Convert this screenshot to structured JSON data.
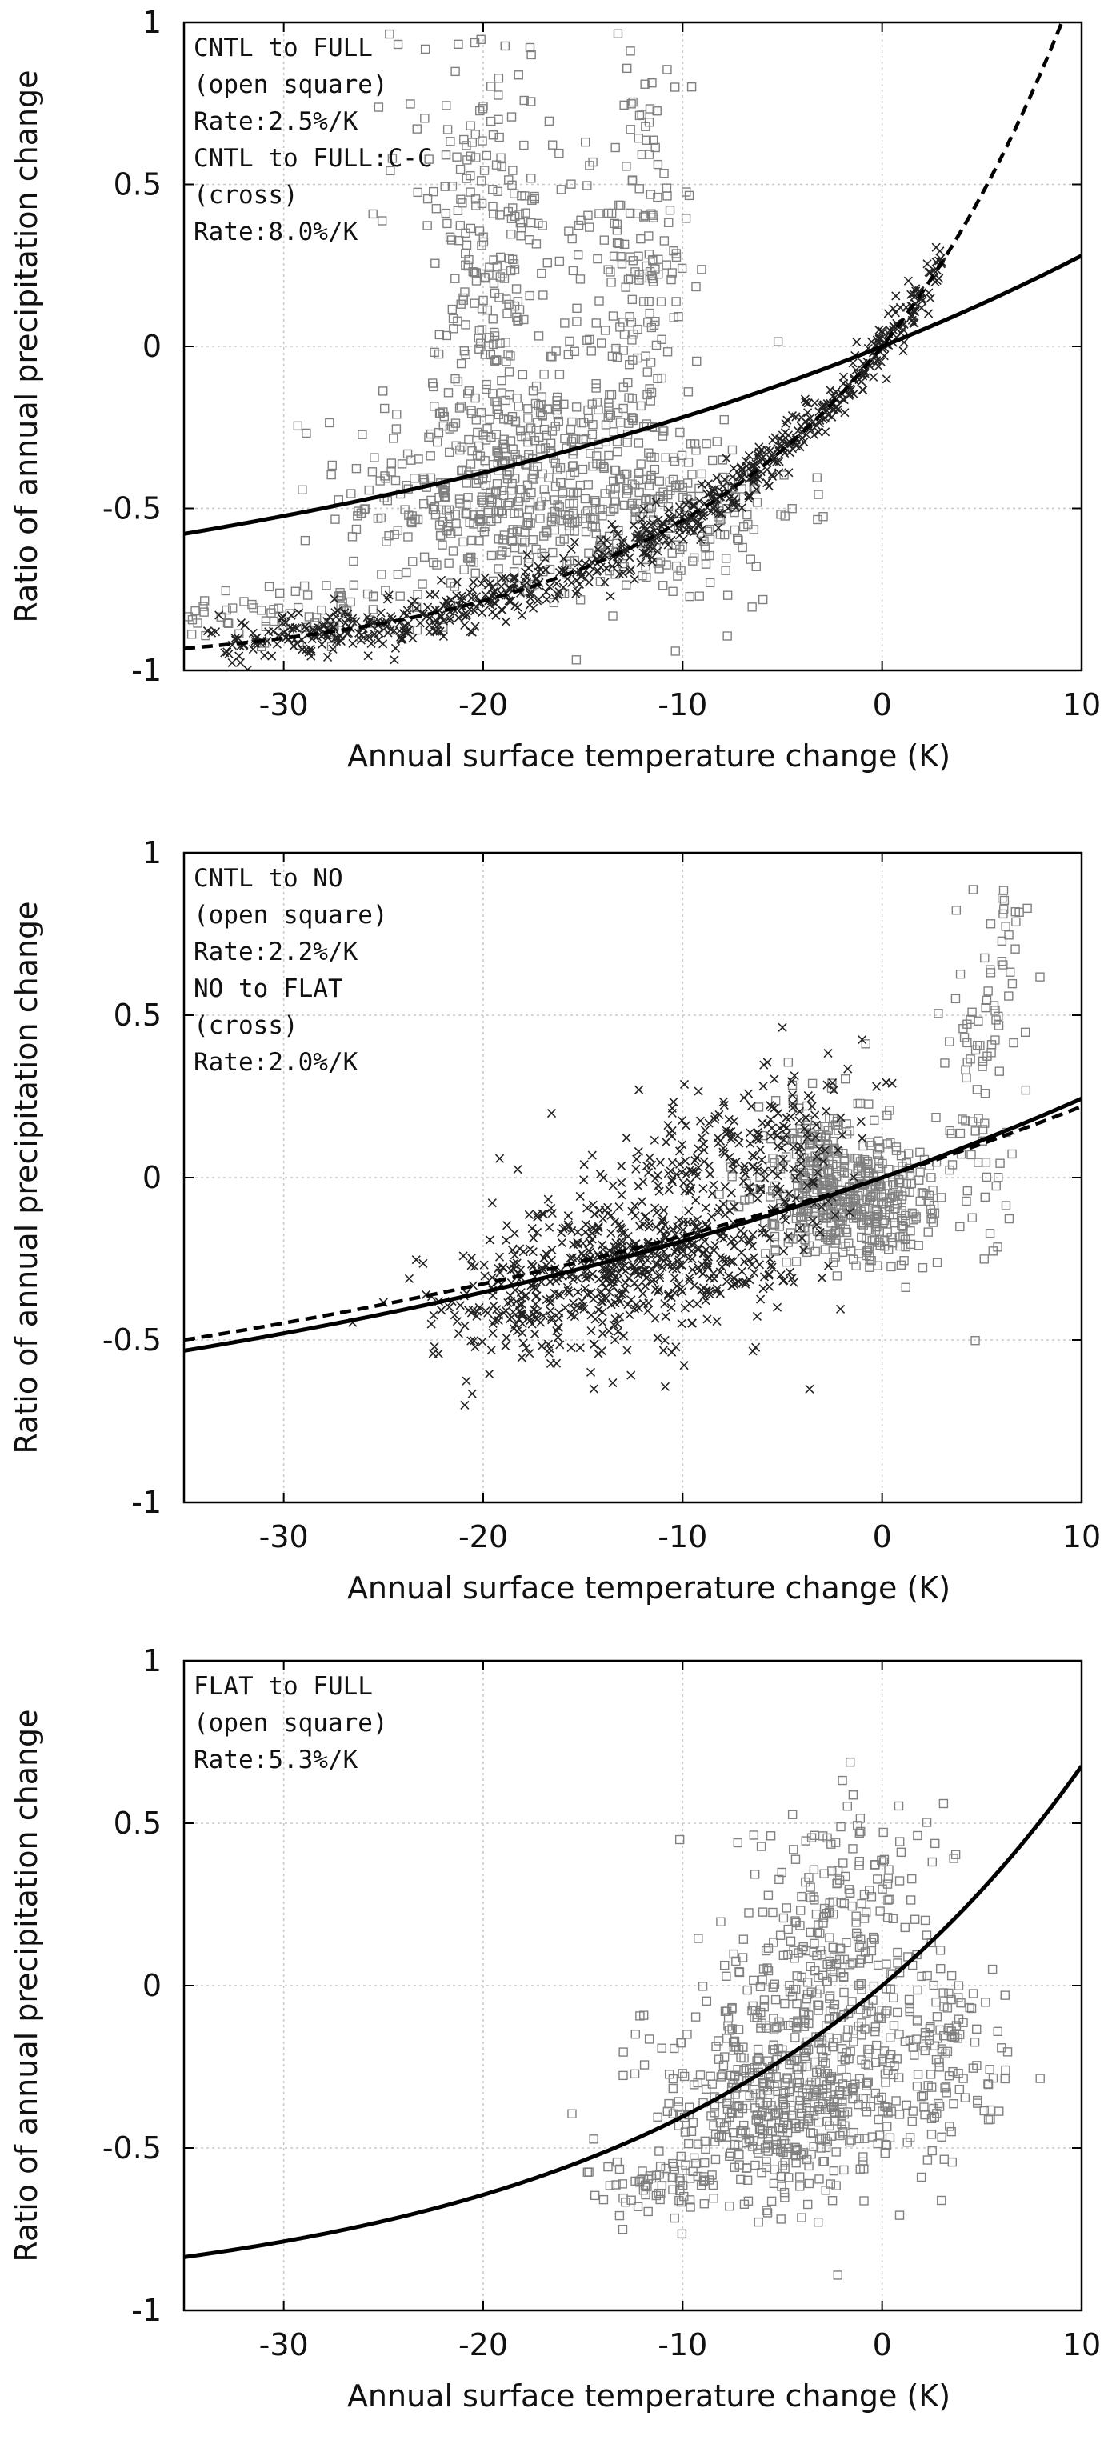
{
  "chart_data": [
    {
      "type": "scatter",
      "xlabel": "Annual surface temperature change (K)",
      "ylabel": "Ratio of annual precipitation change",
      "xlim": [
        -35,
        10
      ],
      "ylim": [
        -1,
        1
      ],
      "xticks": [
        -30,
        -20,
        -10,
        0,
        10
      ],
      "yticks": [
        -1,
        -0.5,
        0,
        0.5,
        1
      ],
      "grid": true,
      "legend_lines": [
        "CNTL to FULL",
        "(open square)",
        "Rate:2.5%/K",
        "CNTL to FULL:C-C",
        "(cross)",
        "Rate:8.0%/K"
      ],
      "series": [
        {
          "marker": "open-square",
          "color": "#808080",
          "rate": 0.025,
          "fit_style": "solid",
          "clusters": [
            {
              "cx": -19,
              "cy": -0.45,
              "sx": 4.0,
              "sy": 0.18,
              "n": 420
            },
            {
              "cx": -19.5,
              "cy": 0.1,
              "sx": 1.3,
              "sy": 0.3,
              "n": 170
            },
            {
              "cx": -20.5,
              "cy": 0.6,
              "sx": 2.0,
              "sy": 0.22,
              "n": 70
            },
            {
              "cx": -12,
              "cy": 0.2,
              "sx": 1.2,
              "sy": 0.38,
              "n": 150
            },
            {
              "cx": -11,
              "cy": -0.5,
              "sx": 3.5,
              "sy": 0.15,
              "n": 200
            },
            {
              "cx": -15,
              "cy": 0.0,
              "sx": 2.5,
              "sy": 0.3,
              "n": 90
            },
            {
              "cx": -29,
              "cy": -0.82,
              "sx": 3.5,
              "sy": 0.05,
              "n": 80
            }
          ]
        },
        {
          "marker": "cross",
          "color": "#222222",
          "rate": 0.08,
          "fit_style": "dashed",
          "on_curve": true,
          "curve_xrange": [
            -34,
            3
          ],
          "curve_spread": 0.04,
          "n": 750
        }
      ]
    },
    {
      "type": "scatter",
      "xlabel": "Annual surface temperature change (K)",
      "ylabel": "Ratio of annual precipitation change",
      "xlim": [
        -35,
        10
      ],
      "ylim": [
        -1,
        1
      ],
      "xticks": [
        -30,
        -20,
        -10,
        0,
        10
      ],
      "yticks": [
        -1,
        -0.5,
        0,
        0.5,
        1
      ],
      "grid": true,
      "legend_lines": [
        "CNTL to NO",
        "(open square)",
        "Rate:2.2%/K",
        "NO to FLAT",
        "(cross)",
        "Rate:2.0%/K"
      ],
      "series": [
        {
          "marker": "open-square",
          "color": "#808080",
          "rate": 0.022,
          "fit_style": "solid",
          "clusters": [
            {
              "cx": -1.5,
              "cy": -0.07,
              "sx": 2.3,
              "sy": 0.1,
              "n": 420
            },
            {
              "cx": -3,
              "cy": 0.1,
              "sx": 1.2,
              "sy": 0.12,
              "n": 90
            },
            {
              "cx": 5,
              "cy": 0.3,
              "sx": 1.0,
              "sy": 0.25,
              "n": 80
            },
            {
              "cx": 6.3,
              "cy": 0.75,
              "sx": 0.35,
              "sy": 0.15,
              "n": 20
            }
          ]
        },
        {
          "marker": "cross",
          "color": "#222222",
          "rate": 0.02,
          "fit_style": "dashed",
          "clusters": [
            {
              "cx": -12,
              "cy": -0.25,
              "sx": 3.5,
              "sy": 0.13,
              "n": 500
            },
            {
              "cx": -18,
              "cy": -0.4,
              "sx": 2.5,
              "sy": 0.1,
              "n": 180
            },
            {
              "cx": -8,
              "cy": 0.05,
              "sx": 2.5,
              "sy": 0.14,
              "n": 150
            },
            {
              "cx": -4,
              "cy": 0.15,
              "sx": 1.5,
              "sy": 0.12,
              "n": 70
            }
          ]
        }
      ]
    },
    {
      "type": "scatter",
      "xlabel": "Annual surface temperature change (K)",
      "ylabel": "Ratio of annual precipitation change",
      "xlim": [
        -35,
        10
      ],
      "ylim": [
        -1,
        1
      ],
      "xticks": [
        -30,
        -20,
        -10,
        0,
        10
      ],
      "yticks": [
        -1,
        -0.5,
        0,
        0.5,
        1
      ],
      "grid": true,
      "legend_lines": [
        "FLAT to FULL",
        "(open square)",
        "Rate:5.3%/K"
      ],
      "series": [
        {
          "marker": "open-square",
          "color": "#808080",
          "rate": 0.053,
          "fit_style": "solid",
          "clusters": [
            {
              "cx": -5,
              "cy": -0.35,
              "sx": 3.0,
              "sy": 0.15,
              "n": 520
            },
            {
              "cx": -3,
              "cy": 0.1,
              "sx": 2.5,
              "sy": 0.18,
              "n": 220
            },
            {
              "cx": 2.5,
              "cy": -0.2,
              "sx": 2.0,
              "sy": 0.15,
              "n": 150
            },
            {
              "cx": -11,
              "cy": -0.62,
              "sx": 1.5,
              "sy": 0.05,
              "n": 60
            },
            {
              "cx": -1,
              "cy": 0.4,
              "sx": 2.5,
              "sy": 0.08,
              "n": 40
            }
          ]
        }
      ]
    }
  ]
}
